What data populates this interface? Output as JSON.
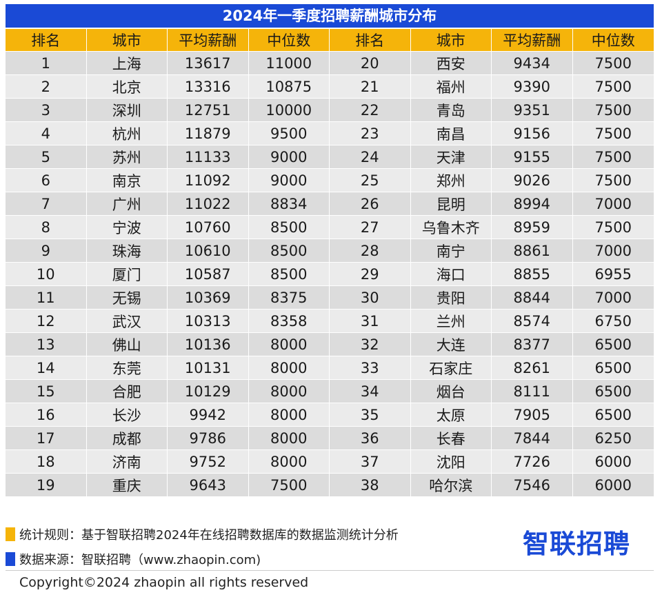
{
  "title": "2024年一季度招聘薪酬城市分布",
  "headers": [
    "排名",
    "城市",
    "平均薪酬",
    "中位数",
    "排名",
    "城市",
    "平均薪酬",
    "中位数"
  ],
  "chart_data": {
    "type": "table",
    "title": "2024年一季度招聘薪酬城市分布",
    "columns": [
      "排名",
      "城市",
      "平均薪酬",
      "中位数"
    ],
    "rows": [
      [
        1,
        "上海",
        13617,
        11000
      ],
      [
        2,
        "北京",
        13316,
        10875
      ],
      [
        3,
        "深圳",
        12751,
        10000
      ],
      [
        4,
        "杭州",
        11879,
        9500
      ],
      [
        5,
        "苏州",
        11133,
        9000
      ],
      [
        6,
        "南京",
        11092,
        9000
      ],
      [
        7,
        "广州",
        11022,
        8834
      ],
      [
        8,
        "宁波",
        10760,
        8500
      ],
      [
        9,
        "珠海",
        10610,
        8500
      ],
      [
        10,
        "厦门",
        10587,
        8500
      ],
      [
        11,
        "无锡",
        10369,
        8375
      ],
      [
        12,
        "武汉",
        10313,
        8358
      ],
      [
        13,
        "佛山",
        10136,
        8000
      ],
      [
        14,
        "东莞",
        10131,
        8000
      ],
      [
        15,
        "合肥",
        10129,
        8000
      ],
      [
        16,
        "长沙",
        9942,
        8000
      ],
      [
        17,
        "成都",
        9786,
        8000
      ],
      [
        18,
        "济南",
        9752,
        8000
      ],
      [
        19,
        "重庆",
        9643,
        7500
      ],
      [
        20,
        "西安",
        9434,
        7500
      ],
      [
        21,
        "福州",
        9390,
        7500
      ],
      [
        22,
        "青岛",
        9351,
        7500
      ],
      [
        23,
        "南昌",
        9156,
        7500
      ],
      [
        24,
        "天津",
        9155,
        7500
      ],
      [
        25,
        "郑州",
        9026,
        7500
      ],
      [
        26,
        "昆明",
        8994,
        7000
      ],
      [
        27,
        "乌鲁木齐",
        8959,
        7500
      ],
      [
        28,
        "南宁",
        8861,
        7000
      ],
      [
        29,
        "海口",
        8855,
        6955
      ],
      [
        30,
        "贵阳",
        8844,
        7000
      ],
      [
        31,
        "兰州",
        8574,
        6750
      ],
      [
        32,
        "大连",
        8377,
        6500
      ],
      [
        33,
        "石家庄",
        8261,
        6500
      ],
      [
        34,
        "烟台",
        8111,
        6500
      ],
      [
        35,
        "太原",
        7905,
        6500
      ],
      [
        36,
        "长春",
        7844,
        6250
      ],
      [
        37,
        "沈阳",
        7726,
        6000
      ],
      [
        38,
        "哈尔滨",
        7546,
        6000
      ]
    ]
  },
  "footer": {
    "rule_text": "统计规则：基于智联招聘2024年在线招聘数据库的数据监测统计分析",
    "source_text": "数据来源：智联招聘（www.zhaopin.com)",
    "copyright": "Copyright©2024 zhaopin all rights reserved",
    "logo_text": "智联招聘",
    "rule_marker_color": "#f5b40a",
    "source_marker_color": "#1a4ad6"
  }
}
